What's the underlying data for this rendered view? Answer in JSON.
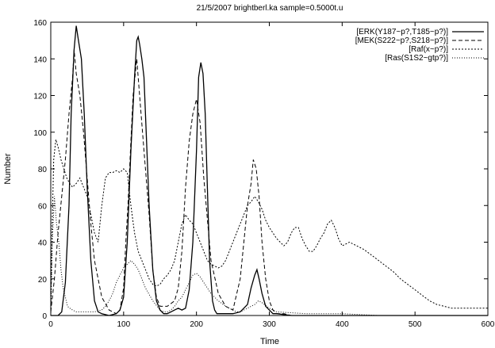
{
  "chart_data": {
    "type": "line",
    "title": "21/5/2007 brightberl.ka sample=0.5000t.u",
    "xlabel": "Time",
    "ylabel": "Number",
    "xlim": [
      0,
      600
    ],
    "ylim": [
      0,
      160
    ],
    "xticks": [
      0,
      100,
      200,
      300,
      400,
      500,
      600
    ],
    "yticks": [
      0,
      20,
      40,
      60,
      80,
      100,
      120,
      140,
      160
    ],
    "grid": false,
    "legend_position": "top-right",
    "series": [
      {
        "name": "[ERK(Y187~p?,T185~p?)]",
        "style": "solid",
        "x": [
          0,
          10,
          15,
          20,
          25,
          28,
          32,
          35,
          38,
          42,
          46,
          50,
          55,
          60,
          65,
          70,
          80,
          90,
          95,
          100,
          105,
          110,
          115,
          118,
          120,
          122,
          125,
          128,
          131,
          135,
          140,
          145,
          150,
          155,
          160,
          165,
          170,
          175,
          180,
          185,
          190,
          195,
          200,
          203,
          206,
          209,
          212,
          215,
          218,
          222,
          225,
          228,
          240,
          250,
          260,
          270,
          275,
          280,
          283,
          286,
          290,
          295,
          300,
          305,
          310,
          330,
          350,
          380,
          420,
          460,
          500,
          600
        ],
        "y": [
          0,
          0,
          2,
          18,
          60,
          110,
          145,
          158,
          150,
          140,
          110,
          70,
          30,
          8,
          2,
          1,
          0,
          1,
          3,
          10,
          40,
          90,
          130,
          150,
          152,
          148,
          140,
          130,
          100,
          60,
          25,
          8,
          3,
          1,
          1,
          2,
          3,
          4,
          3,
          4,
          14,
          40,
          90,
          130,
          138,
          132,
          110,
          70,
          30,
          8,
          3,
          1,
          1,
          1,
          2,
          6,
          15,
          22,
          25,
          20,
          12,
          5,
          3,
          1,
          1,
          0,
          0,
          0,
          0,
          0,
          0,
          0
        ]
      },
      {
        "name": "[MEK(S222~p?,S218~p?)]",
        "style": "dashed",
        "x": [
          0,
          5,
          10,
          15,
          20,
          25,
          30,
          32,
          35,
          40,
          45,
          50,
          55,
          60,
          70,
          80,
          90,
          95,
          100,
          103,
          106,
          110,
          113,
          118,
          122,
          128,
          135,
          140,
          145,
          150,
          160,
          170,
          175,
          180,
          185,
          190,
          195,
          200,
          205,
          210,
          220,
          230,
          240,
          250,
          260,
          265,
          270,
          275,
          278,
          282,
          286,
          290,
          295,
          300,
          305,
          310,
          320,
          330,
          350,
          400,
          500,
          600
        ],
        "y": [
          2,
          20,
          45,
          65,
          85,
          110,
          130,
          145,
          132,
          120,
          100,
          75,
          50,
          30,
          10,
          3,
          1,
          3,
          15,
          40,
          60,
          95,
          120,
          140,
          120,
          90,
          55,
          25,
          10,
          5,
          5,
          8,
          15,
          35,
          70,
          95,
          110,
          118,
          105,
          75,
          30,
          12,
          5,
          3,
          20,
          40,
          60,
          72,
          85,
          80,
          65,
          40,
          20,
          8,
          3,
          1,
          1,
          0,
          0,
          0,
          0,
          0
        ]
      },
      {
        "name": "[Raf(x~p?)]",
        "style": "dotted",
        "x": [
          0,
          2,
          4,
          7,
          10,
          14,
          18,
          22,
          26,
          30,
          35,
          40,
          45,
          50,
          55,
          60,
          65,
          70,
          75,
          80,
          85,
          90,
          95,
          100,
          105,
          110,
          115,
          120,
          125,
          130,
          135,
          140,
          145,
          150,
          155,
          160,
          165,
          170,
          175,
          180,
          185,
          190,
          195,
          200,
          205,
          210,
          215,
          220,
          225,
          230,
          235,
          240,
          245,
          250,
          255,
          260,
          265,
          270,
          275,
          280,
          285,
          290,
          295,
          300,
          305,
          310,
          315,
          320,
          325,
          330,
          335,
          340,
          345,
          350,
          355,
          360,
          365,
          370,
          375,
          380,
          385,
          390,
          395,
          400,
          410,
          420,
          430,
          440,
          450,
          460,
          470,
          480,
          490,
          500,
          510,
          520,
          530,
          540,
          550,
          560,
          570,
          580,
          590,
          600
        ],
        "y": [
          0,
          50,
          85,
          96,
          92,
          85,
          80,
          75,
          72,
          70,
          72,
          75,
          70,
          65,
          55,
          45,
          40,
          60,
          75,
          78,
          78,
          79,
          78,
          80,
          78,
          60,
          45,
          35,
          30,
          25,
          20,
          17,
          16,
          17,
          20,
          22,
          25,
          30,
          40,
          50,
          55,
          52,
          50,
          45,
          40,
          35,
          30,
          28,
          27,
          26,
          27,
          30,
          35,
          40,
          45,
          50,
          55,
          60,
          62,
          65,
          62,
          58,
          52,
          48,
          45,
          42,
          40,
          38,
          40,
          45,
          48,
          48,
          42,
          38,
          35,
          35,
          38,
          42,
          45,
          50,
          52,
          48,
          42,
          38,
          40,
          38,
          36,
          33,
          30,
          27,
          24,
          20,
          17,
          14,
          11,
          8,
          6,
          5,
          4,
          4,
          4,
          4,
          4,
          4
        ]
      },
      {
        "name": "[Ras(S1S2~gtp?)]",
        "style": "fine-dotted",
        "x": [
          0,
          2,
          5,
          8,
          11,
          14,
          17,
          20,
          23,
          26,
          30,
          35,
          40,
          50,
          60,
          70,
          75,
          80,
          85,
          90,
          95,
          100,
          105,
          110,
          115,
          120,
          125,
          130,
          140,
          150,
          155,
          160,
          165,
          170,
          175,
          180,
          185,
          190,
          195,
          200,
          205,
          210,
          220,
          230,
          240,
          250,
          255,
          260,
          265,
          270,
          275,
          280,
          285,
          290,
          300,
          310,
          350,
          400,
          450,
          500,
          600
        ],
        "y": [
          0,
          40,
          65,
          50,
          40,
          25,
          15,
          10,
          5,
          4,
          3,
          2,
          2,
          2,
          2,
          3,
          5,
          8,
          12,
          18,
          22,
          26,
          28,
          30,
          28,
          25,
          20,
          15,
          8,
          3,
          2,
          2,
          3,
          5,
          8,
          10,
          14,
          18,
          22,
          23,
          21,
          18,
          12,
          8,
          5,
          3,
          2,
          2,
          3,
          4,
          5,
          6,
          8,
          7,
          4,
          2,
          1,
          1,
          0,
          0,
          0
        ]
      }
    ]
  }
}
